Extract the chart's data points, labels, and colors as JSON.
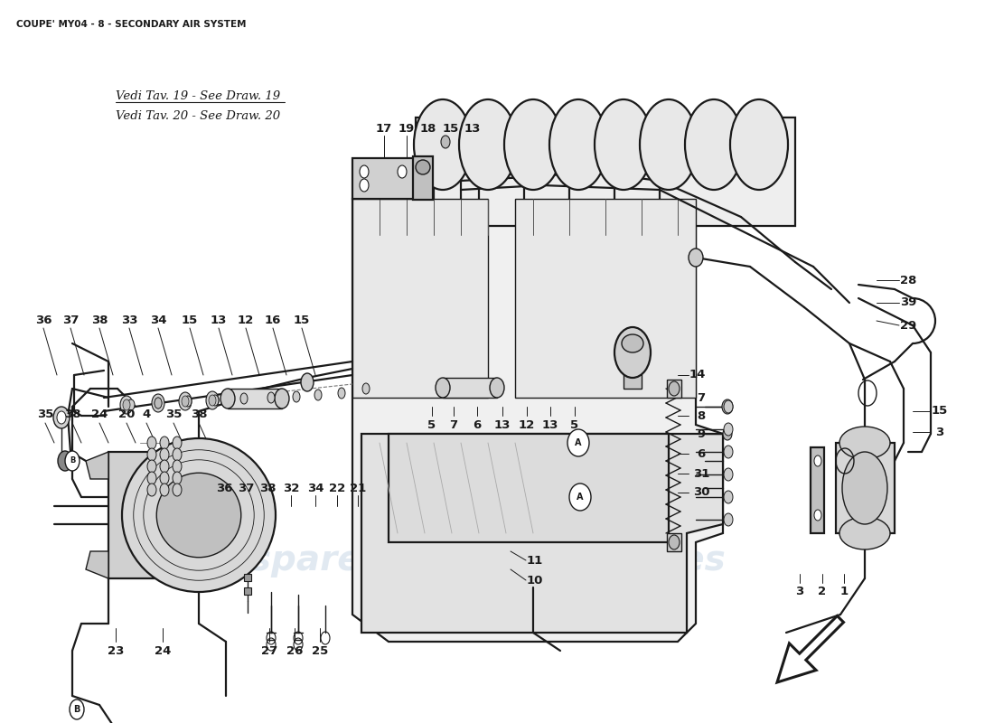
{
  "title": "COUPE' MY04 - 8 - SECONDARY AIR SYSTEM",
  "bg_color": "#ffffff",
  "line_color": "#1a1a1a",
  "label_color": "#1a1a1a",
  "watermark_color": "#c5d5e5",
  "watermark_text": "eurospares",
  "italic_note1": "Vedi Tav. 19 - See Draw. 19",
  "italic_note2": "Vedi Tav. 20 - See Draw. 20",
  "fig_width": 11.0,
  "fig_height": 8.0,
  "dpi": 100
}
